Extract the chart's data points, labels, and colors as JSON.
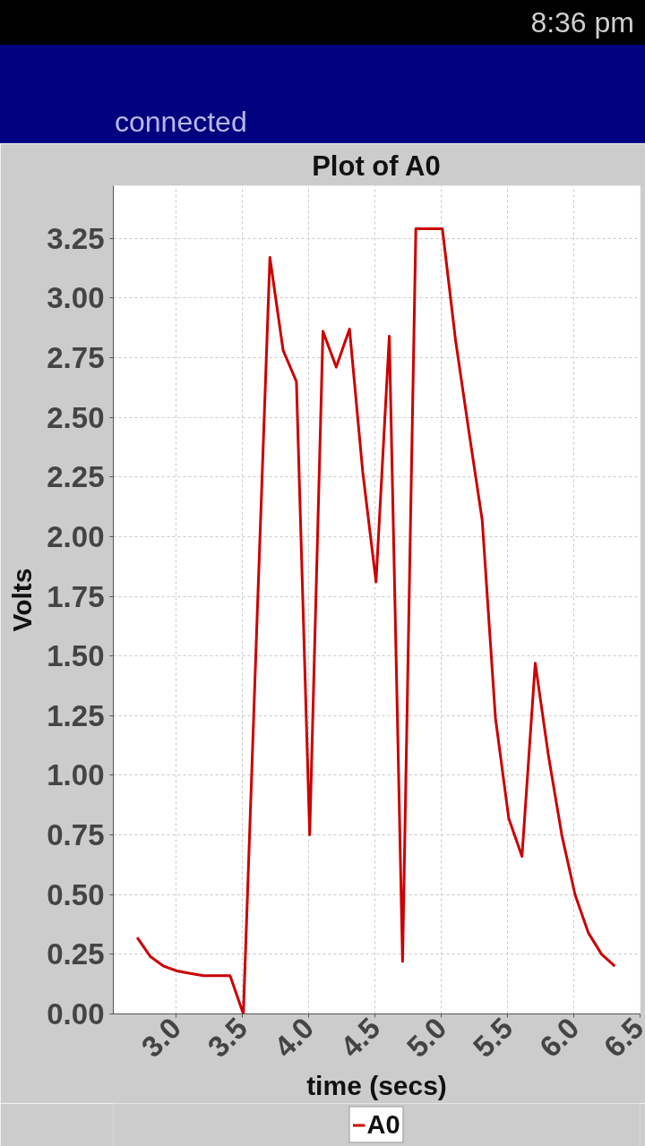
{
  "chart_data": {
    "type": "line",
    "title": "Plot of A0",
    "xlabel": "time (secs)",
    "ylabel": "Volts",
    "annotations": [
      "8:36 pm",
      "connected"
    ],
    "x": [
      2.71,
      2.81,
      2.91,
      3.01,
      3.11,
      3.21,
      3.31,
      3.41,
      3.51,
      3.61,
      3.71,
      3.81,
      3.91,
      4.01,
      4.11,
      4.21,
      4.31,
      4.41,
      4.51,
      4.61,
      4.71,
      4.81,
      4.91,
      5.01,
      5.11,
      5.21,
      5.31,
      5.41,
      5.51,
      5.61,
      5.71,
      5.81,
      5.91,
      6.01,
      6.11,
      6.21,
      6.31
    ],
    "series": [
      {
        "name": "A0",
        "color": "#cc0000",
        "values": [
          0.32,
          0.24,
          0.2,
          0.18,
          0.17,
          0.16,
          0.16,
          0.16,
          0.0,
          1.6,
          3.17,
          2.78,
          2.65,
          0.75,
          2.86,
          2.71,
          2.87,
          2.27,
          1.81,
          2.84,
          0.22,
          3.29,
          3.29,
          3.29,
          2.82,
          2.44,
          2.07,
          1.24,
          0.82,
          0.66,
          1.47,
          1.08,
          0.75,
          0.5,
          0.34,
          0.25,
          0.2
        ]
      }
    ],
    "xlim": [
      2.53,
      6.5
    ],
    "ylim": [
      0,
      3.47
    ],
    "xticks": [
      {
        "value": 3,
        "label": "3.0"
      },
      {
        "value": 3.5,
        "label": "3.5"
      },
      {
        "value": 4,
        "label": "4.0"
      },
      {
        "value": 4.5,
        "label": "4.5"
      },
      {
        "value": 5,
        "label": "5.0"
      },
      {
        "value": 5.5,
        "label": "5.5"
      },
      {
        "value": 6,
        "label": "6.0"
      },
      {
        "value": 6.5,
        "label": "6.5"
      }
    ],
    "yticks": [
      {
        "value": 0,
        "label": "0.00"
      },
      {
        "value": 0.25,
        "label": "0.25"
      },
      {
        "value": 0.5,
        "label": "0.50"
      },
      {
        "value": 0.75,
        "label": "0.75"
      },
      {
        "value": 1,
        "label": "1.00"
      },
      {
        "value": 1.25,
        "label": "1.25"
      },
      {
        "value": 1.5,
        "label": "1.50"
      },
      {
        "value": 1.75,
        "label": "1.75"
      },
      {
        "value": 2,
        "label": "2.00"
      },
      {
        "value": 2.25,
        "label": "2.25"
      },
      {
        "value": 2.5,
        "label": "2.50"
      },
      {
        "value": 2.75,
        "label": "2.75"
      },
      {
        "value": 3,
        "label": "3.00"
      },
      {
        "value": 3.25,
        "label": "3.25"
      }
    ],
    "grid": true,
    "legend": "bottom",
    "line_style": "solid"
  }
}
